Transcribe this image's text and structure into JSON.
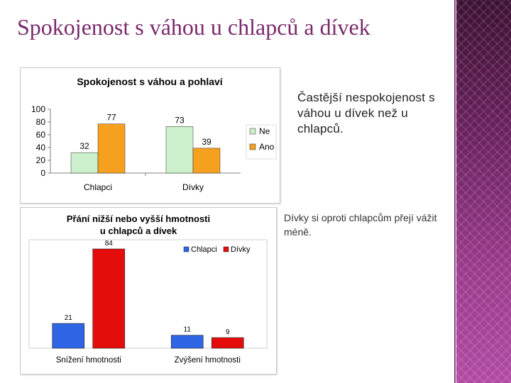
{
  "slide": {
    "title": "Spokojenost s váhou u chlapců a dívek",
    "note1": "Častější nespokojenost s váhou u dívek než u chlapců.",
    "note2": "Dívky si oproti chlapcům přejí vážit méně."
  },
  "colors": {
    "accent": "#7a2a6c",
    "green": "#ccefcc",
    "orange": "#f5a01e",
    "blue": "#2f64e4",
    "red": "#e50c0c"
  },
  "chart_data": [
    {
      "type": "bar",
      "title": "Spokojenost s váhou a pohlaví",
      "categories": [
        "Chlapci",
        "Dívky"
      ],
      "series": [
        {
          "name": "Ne",
          "values": [
            32,
            73
          ]
        },
        {
          "name": "Ano",
          "values": [
            77,
            39
          ]
        }
      ],
      "xlabel": "",
      "ylabel": "",
      "ylim": [
        0,
        100
      ],
      "yticks": [
        "0",
        "20",
        "40",
        "60",
        "80",
        "100"
      ],
      "legend": "right",
      "grid": false
    },
    {
      "type": "bar",
      "title": "Přání nižší nebo vyšší hmotnosti u chlapců a dívek",
      "categories": [
        "Snížení hmotnosti",
        "Zvýšení hmotnosti"
      ],
      "series": [
        {
          "name": "Chlapci",
          "values": [
            21,
            11
          ]
        },
        {
          "name": "Dívky",
          "values": [
            84,
            9
          ]
        }
      ],
      "xlabel": "",
      "ylabel": "",
      "ylim": [
        0,
        84
      ],
      "legend": "top-right",
      "grid": false
    }
  ]
}
